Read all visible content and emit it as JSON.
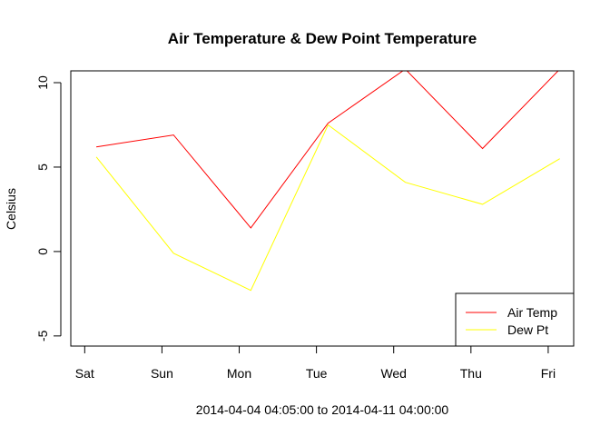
{
  "chart_data": {
    "type": "line",
    "title": "Air Temperature & Dew Point Temperature",
    "xlabel": "2014-04-04 04:05:00 to 2014-04-11 04:00:00",
    "ylabel": "Celsius",
    "x_ticks": [
      "Sat",
      "Sun",
      "Mon",
      "Tue",
      "Wed",
      "Thu",
      "Fri"
    ],
    "y_ticks": [
      -5,
      0,
      5,
      10
    ],
    "xlim": [
      -0.18,
      6.33
    ],
    "ylim": [
      -5.6,
      10.7
    ],
    "x": [
      0.15,
      1.15,
      2.15,
      3.15,
      4.15,
      5.15,
      6.15
    ],
    "series": [
      {
        "name": "Air Temp",
        "color": "#ff0000",
        "values": [
          6.2,
          6.9,
          1.4,
          7.6,
          10.8,
          6.1,
          10.8
        ]
      },
      {
        "name": "Dew Pt",
        "color": "#ffff00",
        "values": [
          5.6,
          -0.1,
          -2.3,
          7.5,
          4.1,
          2.8,
          5.5
        ]
      }
    ],
    "legend_position": "bottom-right",
    "grid": false
  }
}
